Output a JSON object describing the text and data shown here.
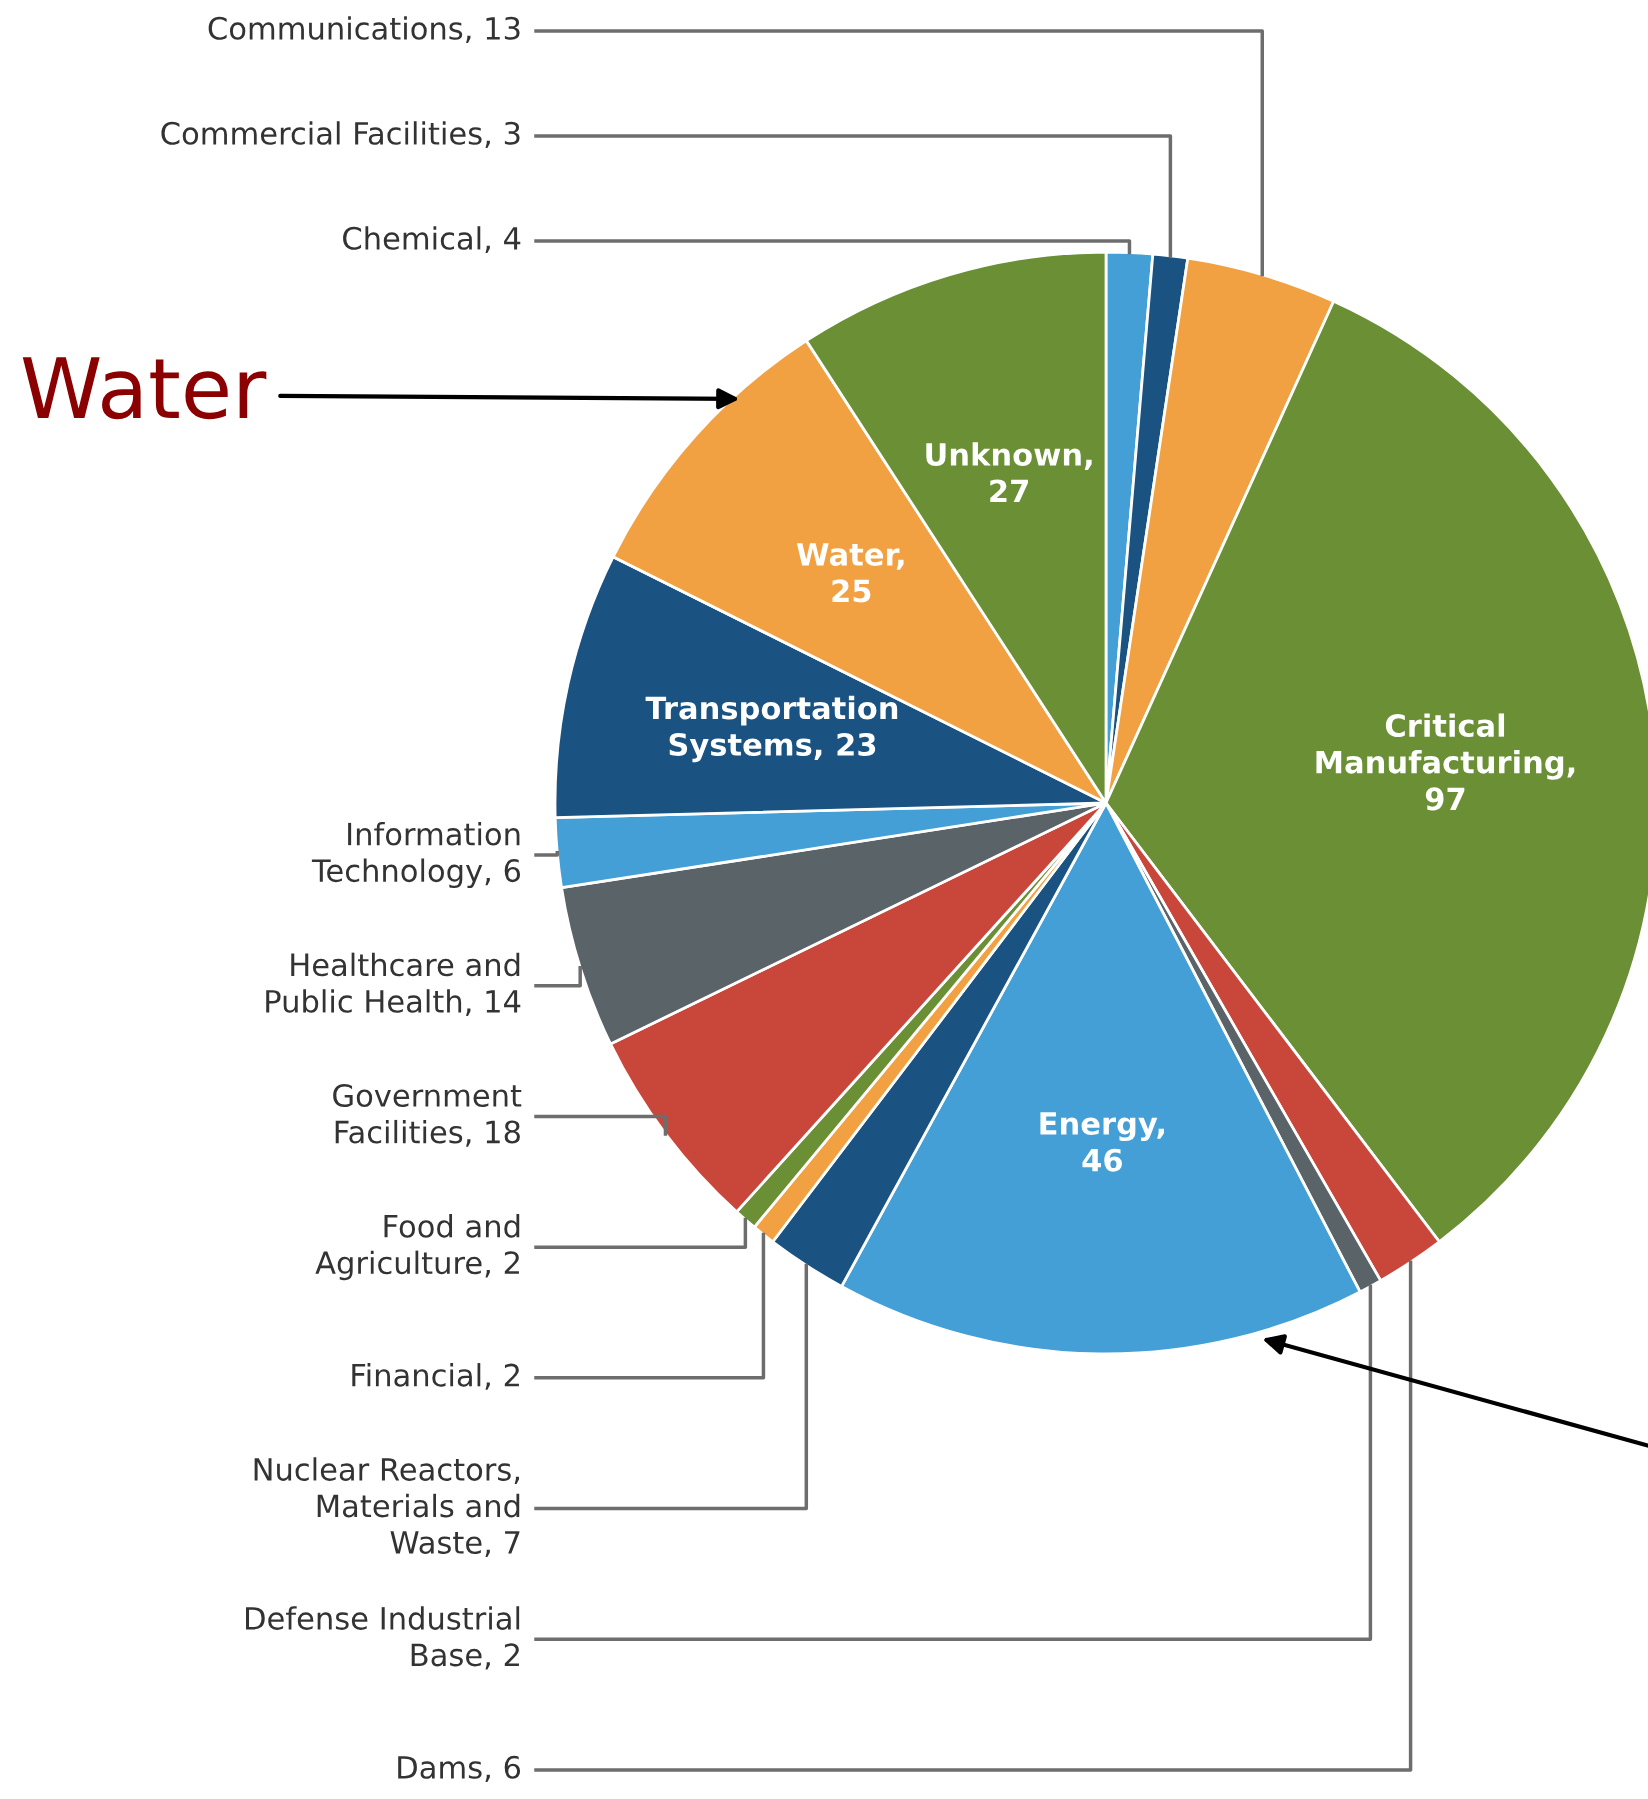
{
  "chart_data": {
    "type": "pie",
    "categories": [
      "Chemical, 4",
      "Commercial Facilities, 3",
      "Communications, 13",
      "Critical Manufacturing, 97",
      "Dams, 6",
      "Defense Industrial Base, 2",
      "Energy, 46",
      "Nuclear Reactors, Materials and Waste, 7",
      "Financial, 2",
      "Food and Agriculture, 2",
      "Government Facilities, 18",
      "Healthcare and Public Health, 14",
      "Information Technology, 6",
      "Transportation Systems, 23",
      "Water, 25",
      "Unknown, 27"
    ],
    "values": [
      4,
      3,
      13,
      97,
      6,
      2,
      46,
      7,
      2,
      2,
      18,
      14,
      6,
      23,
      25,
      27
    ],
    "colors": [
      "#439fd6",
      "#1a5282",
      "#f2a142",
      "#6a8f35",
      "#c8473a",
      "#5a6367",
      "#439fd6",
      "#1a5282",
      "#f2a142",
      "#6a8f35",
      "#c8473a",
      "#5a6367",
      "#439fd6",
      "#1a5282",
      "#f2a142",
      "#6a8f35"
    ],
    "annotations": [
      {
        "text": "Water",
        "x": "Water, 25"
      }
    ]
  }
}
